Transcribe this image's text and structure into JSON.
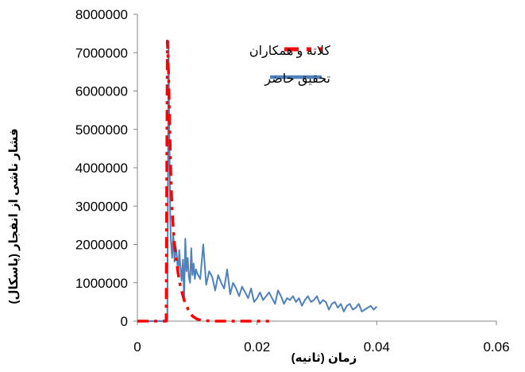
{
  "chart_data": {
    "type": "line",
    "title": "",
    "xlabel": "زمان (ثانیه)",
    "ylabel": "فشار ناشی از انفجار (پاسکال)",
    "xlim": [
      0,
      0.06
    ],
    "ylim": [
      0,
      8000000
    ],
    "x_ticks": [
      "0",
      "0.02",
      "0.04",
      "0.06"
    ],
    "x_tick_values": [
      0,
      0.02,
      0.04,
      0.06
    ],
    "y_ticks": [
      "0",
      "1000000",
      "2000000",
      "3000000",
      "4000000",
      "5000000",
      "6000000",
      "7000000",
      "8000000"
    ],
    "y_tick_values": [
      0,
      1000000,
      2000000,
      3000000,
      4000000,
      5000000,
      6000000,
      7000000,
      8000000
    ],
    "grid": false,
    "legend_position": "top-right",
    "series": [
      {
        "name": "کلاته و همکاران",
        "color": "#ff0000",
        "style": "dash-dot",
        "x": [
          0,
          0.0045,
          0.0048,
          0.005,
          0.0052,
          0.0054,
          0.0056,
          0.0058,
          0.006,
          0.0062,
          0.0065,
          0.0068,
          0.0072,
          0.0078,
          0.0085,
          0.0092,
          0.01,
          0.011,
          0.013,
          0.016,
          0.02,
          0.022
        ],
        "y": [
          0,
          0,
          0,
          7300000,
          6500000,
          5000000,
          3700000,
          2900000,
          2400000,
          2000000,
          1600000,
          1250000,
          900000,
          550000,
          300000,
          130000,
          50000,
          15000,
          0,
          0,
          0,
          0
        ]
      },
      {
        "name": "تحقیق حاضر",
        "color": "#4f81bd",
        "style": "solid",
        "x": [
          0,
          0.0048,
          0.005,
          0.0052,
          0.0053,
          0.0054,
          0.0055,
          0.0056,
          0.0058,
          0.006,
          0.0062,
          0.0064,
          0.0066,
          0.0068,
          0.007,
          0.0072,
          0.0074,
          0.0076,
          0.0078,
          0.008,
          0.0082,
          0.0084,
          0.0086,
          0.0088,
          0.009,
          0.0092,
          0.0094,
          0.0096,
          0.0098,
          0.01,
          0.0105,
          0.011,
          0.0115,
          0.012,
          0.0125,
          0.013,
          0.0135,
          0.014,
          0.0145,
          0.015,
          0.0155,
          0.016,
          0.0165,
          0.017,
          0.0175,
          0.018,
          0.0185,
          0.019,
          0.0195,
          0.02,
          0.0205,
          0.021,
          0.0215,
          0.022,
          0.0225,
          0.023,
          0.0235,
          0.024,
          0.0245,
          0.025,
          0.0255,
          0.026,
          0.0265,
          0.027,
          0.0275,
          0.028,
          0.0285,
          0.029,
          0.0295,
          0.03,
          0.0305,
          0.031,
          0.0315,
          0.032,
          0.0325,
          0.033,
          0.0335,
          0.034,
          0.0345,
          0.035,
          0.0355,
          0.036,
          0.0365,
          0.037,
          0.0375,
          0.038,
          0.0385,
          0.039,
          0.0395,
          0.04
        ],
        "y": [
          0,
          0,
          0,
          7300000,
          5600000,
          3900000,
          2600000,
          2100000,
          1650000,
          2300000,
          1550000,
          1950000,
          1700000,
          1200000,
          1850000,
          1400000,
          1050000,
          1600000,
          550000,
          2150000,
          1300000,
          1650000,
          1150000,
          1000000,
          1900000,
          1200000,
          1500000,
          1100000,
          1350000,
          1250000,
          1100000,
          2000000,
          950000,
          1300000,
          1150000,
          800000,
          1200000,
          1000000,
          850000,
          1350000,
          700000,
          1000000,
          850000,
          650000,
          900000,
          750000,
          600000,
          850000,
          500000,
          600000,
          750000,
          550000,
          650000,
          750000,
          600000,
          450000,
          800000,
          650000,
          450000,
          600000,
          550000,
          650000,
          500000,
          600000,
          400000,
          550000,
          650000,
          500000,
          550000,
          650000,
          450000,
          550000,
          500000,
          300000,
          450000,
          500000,
          350000,
          450000,
          250000,
          400000,
          450000,
          300000,
          350000,
          450000,
          250000,
          300000,
          350000,
          400000,
          300000,
          380000
        ]
      }
    ]
  }
}
